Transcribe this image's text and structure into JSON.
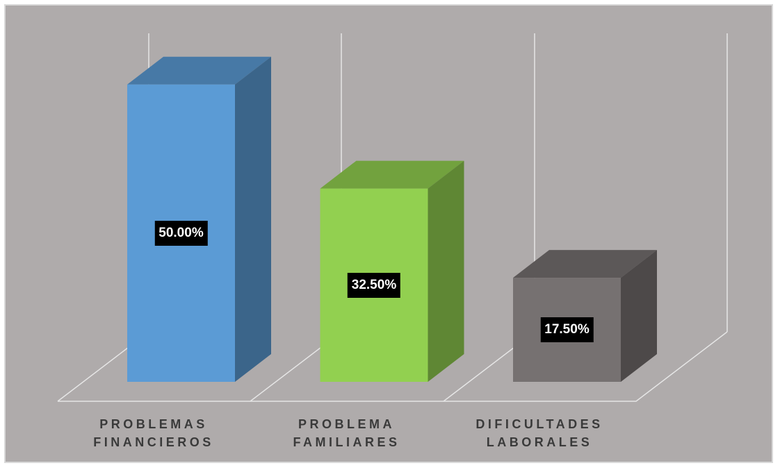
{
  "chart_data": {
    "type": "bar3d",
    "categories": [
      "PROBLEMAS FINANCIEROS",
      "PROBLEMA FAMILIARES",
      "DIFICULTADES LABORALES"
    ],
    "values": [
      50,
      32.5,
      17.5
    ],
    "value_labels": [
      "50.00%",
      "32.50%",
      "17.50%"
    ],
    "colors": [
      "#5b9bd5",
      "#92d050",
      "#767171"
    ],
    "ylim": [
      0,
      53
    ]
  }
}
